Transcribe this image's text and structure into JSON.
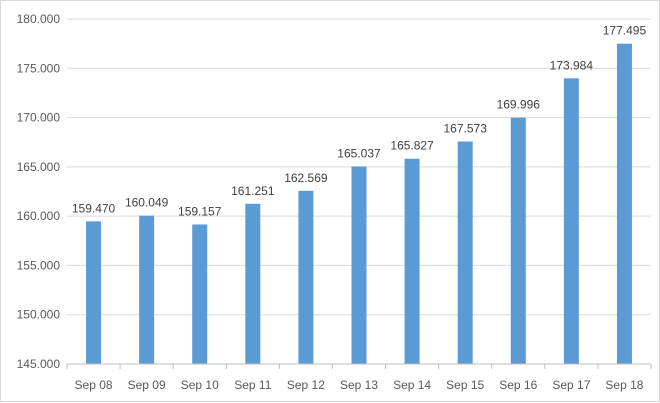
{
  "chart_data": {
    "type": "bar",
    "title": "",
    "xlabel": "",
    "ylabel": "",
    "categories": [
      "Sep 08",
      "Sep 09",
      "Sep 10",
      "Sep 11",
      "Sep 12",
      "Sep 13",
      "Sep 14",
      "Sep 15",
      "Sep 16",
      "Sep 17",
      "Sep 18"
    ],
    "values": [
      159470,
      160049,
      159157,
      161251,
      162569,
      165037,
      165827,
      167573,
      169996,
      173984,
      177495
    ],
    "data_labels": [
      "159.470",
      "160.049",
      "159.157",
      "161.251",
      "162.569",
      "165.037",
      "165.827",
      "167.573",
      "169.996",
      "173.984",
      "177.495"
    ],
    "ylim": [
      145000,
      180000
    ],
    "yticks": [
      145000,
      150000,
      155000,
      160000,
      165000,
      170000,
      175000,
      180000
    ],
    "ytick_labels": [
      "145.000",
      "150.000",
      "155.000",
      "160.000",
      "165.000",
      "170.000",
      "175.000",
      "180.000"
    ],
    "grid": true,
    "legend": "none",
    "bar_color": "#5b9bd5",
    "grid_color": "#d9d9d9",
    "axis_color": "#bfbfbf"
  }
}
